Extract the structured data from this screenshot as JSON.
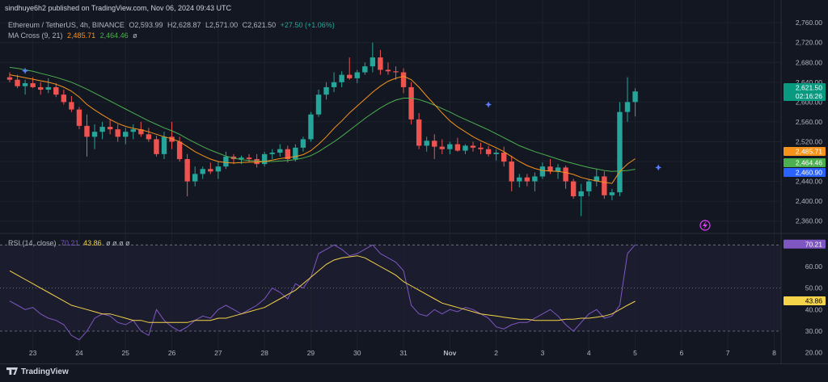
{
  "header": {
    "published": "sindhuye6h2 published on TradingView.com, Nov 06, 2024 09:43 UTC",
    "symbol": "Ethereum / TetherUS, 4h, BINANCE",
    "ohlc": {
      "o": "O2,593.99",
      "h": "H2,628.87",
      "l": "L2,571.00",
      "c": "C2,621.50",
      "chg": "+27.50 (+1.06%)"
    },
    "ma_label": "MA Cross (9, 21)",
    "ma_fast": "2,485.71",
    "ma_slow": "2,464.46",
    "ma_extra": "ø",
    "rsi_label": "RSI (14, close)",
    "rsi_value": "70.21",
    "rsi_ma": "43.86",
    "rsi_extra": "ø ø ø ø"
  },
  "footer": {
    "brand": "TradingView"
  },
  "colors": {
    "up": "#26a69a",
    "down": "#ef5350",
    "fast_ma": "#f7931a",
    "slow_ma": "#4caf50",
    "rsi": "#7e57c2",
    "rsi_ma": "#f5d44a",
    "background": "#131722"
  },
  "chart_data": {
    "type": "candlestick",
    "price_axis": {
      "min": 2340,
      "max": 2770,
      "ticks": [
        2360,
        2400,
        2440,
        2480,
        2520,
        2560,
        2600,
        2640,
        2680,
        2720,
        2760
      ],
      "tick_labels": [
        "2,360.00",
        "2,400.00",
        "2,440.00",
        "2,480.00",
        "2,520.00",
        "2,560.00",
        "2,600.00",
        "2,640.00",
        "2,680.00",
        "2,720.00",
        "2,760.00"
      ]
    },
    "time_axis": {
      "labels": [
        "23",
        "24",
        "25",
        "26",
        "27",
        "28",
        "29",
        "30",
        "31",
        "Nov",
        "2",
        "3",
        "4",
        "5",
        "6",
        "7",
        "8"
      ],
      "label_bar_index": [
        3,
        9,
        15,
        21,
        27,
        33,
        39,
        45,
        51,
        57,
        63,
        69,
        75,
        81,
        87,
        93,
        99
      ]
    },
    "price_badges": [
      {
        "value": "2,621.50",
        "sub": "02:16:26",
        "price": 2621.5,
        "color": "#089981"
      },
      {
        "value": "2,485.71",
        "price": 2485.71,
        "color": "#f7931a"
      },
      {
        "value": "2,464.46",
        "price": 2464.46,
        "color": "#4caf50"
      },
      {
        "value": "2,460.90",
        "price": 2460.9,
        "color": "#2962ff"
      }
    ],
    "candles": [
      [
        2650,
        2660,
        2640,
        2645
      ],
      [
        2645,
        2655,
        2628,
        2632
      ],
      [
        2632,
        2645,
        2615,
        2638
      ],
      [
        2638,
        2650,
        2628,
        2630
      ],
      [
        2630,
        2640,
        2615,
        2625
      ],
      [
        2625,
        2648,
        2618,
        2630
      ],
      [
        2630,
        2638,
        2610,
        2615
      ],
      [
        2615,
        2625,
        2595,
        2600
      ],
      [
        2600,
        2612,
        2580,
        2585
      ],
      [
        2585,
        2590,
        2545,
        2552
      ],
      [
        2552,
        2575,
        2490,
        2530
      ],
      [
        2530,
        2555,
        2505,
        2540
      ],
      [
        2540,
        2560,
        2525,
        2550
      ],
      [
        2550,
        2565,
        2535,
        2545
      ],
      [
        2545,
        2555,
        2520,
        2530
      ],
      [
        2530,
        2548,
        2515,
        2540
      ],
      [
        2540,
        2555,
        2525,
        2545
      ],
      [
        2545,
        2560,
        2530,
        2535
      ],
      [
        2535,
        2548,
        2520,
        2525
      ],
      [
        2525,
        2532,
        2490,
        2495
      ],
      [
        2495,
        2540,
        2485,
        2530
      ],
      [
        2530,
        2560,
        2505,
        2520
      ],
      [
        2520,
        2530,
        2480,
        2485
      ],
      [
        2485,
        2495,
        2410,
        2440
      ],
      [
        2440,
        2470,
        2430,
        2455
      ],
      [
        2455,
        2470,
        2445,
        2465
      ],
      [
        2465,
        2478,
        2455,
        2460
      ],
      [
        2460,
        2480,
        2445,
        2470
      ],
      [
        2470,
        2500,
        2465,
        2490
      ],
      [
        2490,
        2495,
        2475,
        2485
      ],
      [
        2485,
        2492,
        2475,
        2488
      ],
      [
        2488,
        2495,
        2478,
        2485
      ],
      [
        2485,
        2495,
        2468,
        2475
      ],
      [
        2475,
        2500,
        2470,
        2495
      ],
      [
        2495,
        2505,
        2485,
        2498
      ],
      [
        2498,
        2515,
        2490,
        2505
      ],
      [
        2505,
        2512,
        2478,
        2485
      ],
      [
        2485,
        2515,
        2480,
        2508
      ],
      [
        2508,
        2530,
        2500,
        2525
      ],
      [
        2525,
        2580,
        2520,
        2575
      ],
      [
        2575,
        2625,
        2570,
        2615
      ],
      [
        2615,
        2640,
        2605,
        2630
      ],
      [
        2630,
        2660,
        2620,
        2640
      ],
      [
        2640,
        2662,
        2630,
        2655
      ],
      [
        2655,
        2690,
        2645,
        2648
      ],
      [
        2648,
        2665,
        2638,
        2660
      ],
      [
        2660,
        2680,
        2655,
        2672
      ],
      [
        2672,
        2720,
        2660,
        2690
      ],
      [
        2690,
        2705,
        2655,
        2665
      ],
      [
        2665,
        2680,
        2655,
        2662
      ],
      [
        2662,
        2672,
        2645,
        2660
      ],
      [
        2660,
        2668,
        2618,
        2630
      ],
      [
        2630,
        2640,
        2555,
        2565
      ],
      [
        2565,
        2578,
        2505,
        2512
      ],
      [
        2512,
        2530,
        2500,
        2522
      ],
      [
        2522,
        2535,
        2485,
        2510
      ],
      [
        2510,
        2525,
        2495,
        2505
      ],
      [
        2505,
        2520,
        2495,
        2515
      ],
      [
        2515,
        2528,
        2500,
        2502
      ],
      [
        2502,
        2515,
        2495,
        2512
      ],
      [
        2512,
        2520,
        2500,
        2508
      ],
      [
        2508,
        2518,
        2495,
        2505
      ],
      [
        2505,
        2512,
        2490,
        2495
      ],
      [
        2495,
        2505,
        2482,
        2498
      ],
      [
        2498,
        2510,
        2470,
        2480
      ],
      [
        2480,
        2492,
        2420,
        2440
      ],
      [
        2440,
        2455,
        2428,
        2448
      ],
      [
        2448,
        2455,
        2430,
        2440
      ],
      [
        2440,
        2458,
        2420,
        2450
      ],
      [
        2450,
        2478,
        2445,
        2470
      ],
      [
        2470,
        2485,
        2455,
        2460
      ],
      [
        2460,
        2475,
        2445,
        2468
      ],
      [
        2468,
        2472,
        2425,
        2440
      ],
      [
        2440,
        2445,
        2405,
        2410
      ],
      [
        2410,
        2435,
        2370,
        2420
      ],
      [
        2420,
        2445,
        2410,
        2440
      ],
      [
        2440,
        2465,
        2430,
        2450
      ],
      [
        2450,
        2460,
        2405,
        2412
      ],
      [
        2412,
        2425,
        2402,
        2418
      ],
      [
        2418,
        2600,
        2410,
        2580
      ],
      [
        2580,
        2650,
        2560,
        2600
      ],
      [
        2600,
        2628,
        2571,
        2621.5
      ]
    ],
    "ma_fast": [
      2655,
      2652,
      2649,
      2646,
      2643,
      2640,
      2636,
      2630,
      2622,
      2610,
      2595,
      2584,
      2574,
      2565,
      2557,
      2551,
      2547,
      2544,
      2540,
      2535,
      2530,
      2526,
      2520,
      2510,
      2500,
      2492,
      2485,
      2480,
      2478,
      2477,
      2478,
      2479,
      2479,
      2480,
      2483,
      2486,
      2488,
      2490,
      2494,
      2502,
      2515,
      2530,
      2547,
      2562,
      2578,
      2592,
      2606,
      2620,
      2632,
      2642,
      2648,
      2652,
      2645,
      2630,
      2612,
      2595,
      2578,
      2562,
      2550,
      2540,
      2530,
      2522,
      2515,
      2508,
      2500,
      2490,
      2480,
      2472,
      2466,
      2462,
      2461,
      2460,
      2458,
      2454,
      2448,
      2444,
      2441,
      2438,
      2436,
      2460,
      2475,
      2485.71
    ],
    "ma_slow": [
      2670,
      2668,
      2665,
      2662,
      2658,
      2654,
      2650,
      2645,
      2640,
      2633,
      2626,
      2618,
      2610,
      2602,
      2594,
      2586,
      2578,
      2570,
      2562,
      2555,
      2548,
      2542,
      2535,
      2526,
      2518,
      2510,
      2503,
      2497,
      2491,
      2487,
      2484,
      2482,
      2481,
      2480,
      2480,
      2481,
      2482,
      2484,
      2487,
      2492,
      2500,
      2510,
      2520,
      2531,
      2543,
      2555,
      2567,
      2578,
      2588,
      2597,
      2604,
      2608,
      2608,
      2605,
      2600,
      2594,
      2587,
      2580,
      2572,
      2565,
      2558,
      2551,
      2544,
      2536,
      2528,
      2520,
      2512,
      2506,
      2500,
      2495,
      2490,
      2485,
      2480,
      2476,
      2472,
      2468,
      2465,
      2462,
      2460,
      2461,
      2462,
      2464.46
    ],
    "rsi_axis": {
      "ticks": [
        20,
        30,
        40,
        50,
        60,
        70
      ],
      "tick_labels": [
        "20.00",
        "30.00",
        "40.00",
        "50.00",
        "60.00",
        "70.00"
      ],
      "overbought": 70,
      "oversold": 30,
      "min": 15,
      "max": 75
    },
    "rsi": [
      44,
      42,
      40,
      41,
      38,
      36,
      35,
      33,
      28,
      26,
      30,
      36,
      38,
      37,
      34,
      33,
      35,
      30,
      28,
      40,
      35,
      32,
      30,
      32,
      35,
      37,
      36,
      40,
      42,
      40,
      38,
      40,
      42,
      45,
      50,
      48,
      45,
      52,
      50,
      55,
      66,
      68,
      70,
      68,
      65,
      66,
      68,
      70,
      66,
      64,
      62,
      58,
      42,
      38,
      37,
      40,
      38,
      40,
      39,
      41,
      40,
      38,
      36,
      32,
      31,
      33,
      34,
      34,
      36,
      38,
      40,
      37,
      33,
      30,
      34,
      38,
      40,
      36,
      37,
      42,
      66,
      70.21
    ],
    "rsi_ma": [
      58,
      56,
      54,
      52,
      50,
      48,
      46,
      44,
      42,
      41,
      40,
      39,
      38,
      38,
      37,
      36,
      35,
      35,
      34,
      34,
      34,
      34,
      34,
      34,
      35,
      35,
      35,
      36,
      36,
      37,
      38,
      39,
      40,
      41,
      43,
      45,
      47,
      49,
      52,
      55,
      58,
      61,
      63,
      64,
      64.5,
      65,
      64,
      62,
      60,
      58,
      56,
      53,
      51,
      49,
      47,
      45,
      43,
      42,
      41,
      40,
      39,
      38,
      37.5,
      37,
      36.5,
      36,
      35.5,
      35.5,
      35,
      35,
      35,
      35,
      35.5,
      35.5,
      36,
      36,
      36.5,
      37,
      38,
      40,
      42,
      43.86
    ],
    "annotations": {
      "ma_cross_markers": [
        {
          "bar": 2,
          "price": 2663
        },
        {
          "bar": 62,
          "price": 2595
        },
        {
          "bar": 84,
          "price": 2468
        }
      ]
    }
  }
}
